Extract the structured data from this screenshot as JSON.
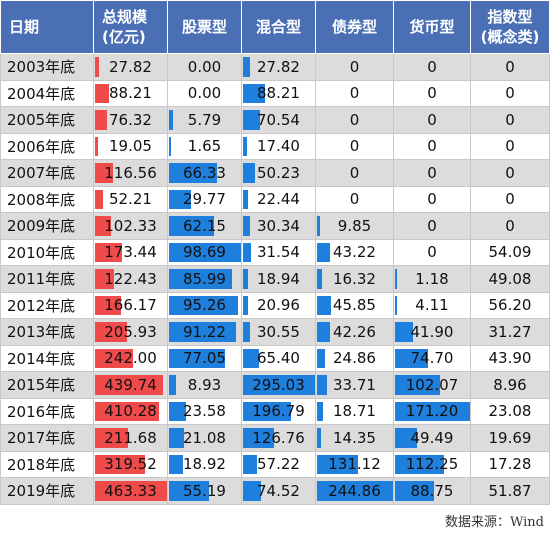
{
  "headers": [
    "日期",
    "总规模\n(亿元)",
    "股票型",
    "混合型",
    "债券型",
    "货币型",
    "指数型\n(概念类)"
  ],
  "rows": [
    {
      "year": "2003年底",
      "total": "27.82",
      "stock": "0.00",
      "mixed": "27.82",
      "bond": "0",
      "money": "0",
      "index": "0"
    },
    {
      "year": "2004年底",
      "total": "88.21",
      "stock": "0.00",
      "mixed": "88.21",
      "bond": "0",
      "money": "0",
      "index": "0"
    },
    {
      "year": "2005年底",
      "total": "76.32",
      "stock": "5.79",
      "mixed": "70.54",
      "bond": "0",
      "money": "0",
      "index": "0"
    },
    {
      "year": "2006年底",
      "total": "19.05",
      "stock": "1.65",
      "mixed": "17.40",
      "bond": "0",
      "money": "0",
      "index": "0"
    },
    {
      "year": "2007年底",
      "total": "116.56",
      "stock": "66.33",
      "mixed": "50.23",
      "bond": "0",
      "money": "0",
      "index": "0"
    },
    {
      "year": "2008年底",
      "total": "52.21",
      "stock": "29.77",
      "mixed": "22.44",
      "bond": "0",
      "money": "0",
      "index": "0"
    },
    {
      "year": "2009年底",
      "total": "102.33",
      "stock": "62.15",
      "mixed": "30.34",
      "bond": "9.85",
      "money": "0",
      "index": "0"
    },
    {
      "year": "2010年底",
      "total": "173.44",
      "stock": "98.69",
      "mixed": "31.54",
      "bond": "43.22",
      "money": "0",
      "index": "54.09"
    },
    {
      "year": "2011年底",
      "total": "122.43",
      "stock": "85.99",
      "mixed": "18.94",
      "bond": "16.32",
      "money": "1.18",
      "index": "49.08"
    },
    {
      "year": "2012年底",
      "total": "166.17",
      "stock": "95.26",
      "mixed": "20.96",
      "bond": "45.85",
      "money": "4.11",
      "index": "56.20"
    },
    {
      "year": "2013年底",
      "total": "205.93",
      "stock": "91.22",
      "mixed": "30.55",
      "bond": "42.26",
      "money": "41.90",
      "index": "31.27"
    },
    {
      "year": "2014年底",
      "total": "242.00",
      "stock": "77.05",
      "mixed": "65.40",
      "bond": "24.86",
      "money": "74.70",
      "index": "43.90"
    },
    {
      "year": "2015年底",
      "total": "439.74",
      "stock": "8.93",
      "mixed": "295.03",
      "bond": "33.71",
      "money": "102.07",
      "index": "8.96"
    },
    {
      "year": "2016年底",
      "total": "410.28",
      "stock": "23.58",
      "mixed": "196.79",
      "bond": "18.71",
      "money": "171.20",
      "index": "23.08"
    },
    {
      "year": "2017年底",
      "total": "211.68",
      "stock": "21.08",
      "mixed": "126.76",
      "bond": "14.35",
      "money": "49.49",
      "index": "19.69"
    },
    {
      "year": "2018年底",
      "total": "319.52",
      "stock": "18.92",
      "mixed": "57.22",
      "bond": "131.12",
      "money": "112.25",
      "index": "17.28"
    },
    {
      "year": "2019年底",
      "total": "463.33",
      "stock": "55.19",
      "mixed": "74.52",
      "bond": "244.86",
      "money": "88.75",
      "index": "51.87"
    }
  ],
  "source": "数据来源：Wind",
  "colors": {
    "header_bg": "#4a6fb4",
    "total_bar": "#f04b4b",
    "fund_bar": "#1f7fdc",
    "row_shade": "#dcdcdc"
  }
}
